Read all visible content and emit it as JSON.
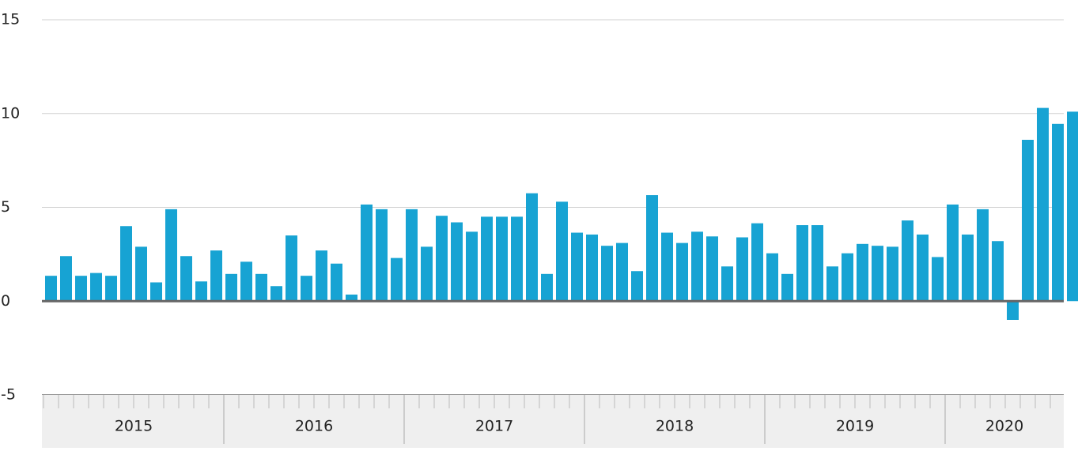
{
  "chart_data": {
    "type": "bar",
    "years": [
      "2015",
      "2016",
      "2017",
      "2018",
      "2019",
      "2020"
    ],
    "values": [
      1.35,
      2.4,
      1.35,
      1.5,
      1.35,
      4.0,
      2.9,
      1.0,
      4.9,
      2.4,
      1.05,
      2.7,
      1.45,
      2.1,
      1.45,
      0.8,
      3.5,
      1.35,
      2.7,
      2.0,
      0.35,
      5.15,
      4.9,
      2.3,
      4.9,
      2.9,
      4.55,
      4.2,
      3.7,
      4.5,
      4.5,
      4.5,
      5.75,
      1.45,
      5.3,
      3.65,
      3.55,
      2.95,
      3.1,
      1.6,
      5.65,
      3.65,
      3.1,
      3.7,
      3.45,
      1.85,
      3.4,
      4.15,
      2.55,
      1.45,
      4.05,
      4.05,
      1.85,
      2.55,
      3.05,
      2.95,
      2.9,
      4.3,
      3.55,
      2.35,
      5.15,
      3.55,
      4.9,
      3.2,
      -1.0,
      8.6,
      10.3,
      9.45,
      10.1
    ],
    "color": "#17a3d3",
    "ylim": [
      -5,
      15
    ],
    "yticks": [
      -5,
      0,
      5,
      10,
      15
    ],
    "grid": true
  }
}
